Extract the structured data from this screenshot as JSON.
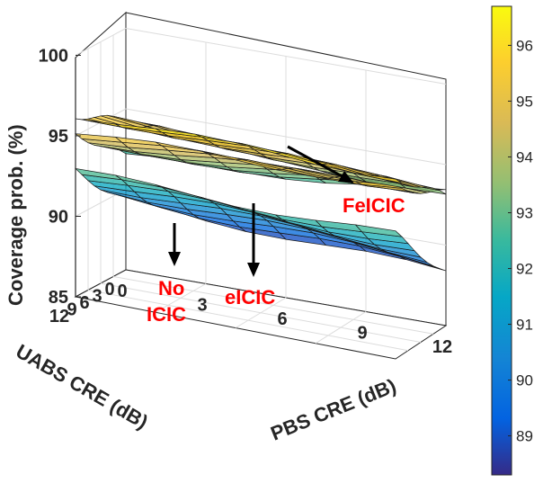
{
  "chart_data": {
    "type": "surface3d",
    "zlabel": "Coverage prob. (%)",
    "xlabel": "PBS CRE (dB)",
    "ylabel": "UABS CRE (dB)",
    "x_ticks": [
      "0",
      "3",
      "6",
      "9",
      "12"
    ],
    "y_ticks": [
      "0",
      "3",
      "6",
      "9",
      "12"
    ],
    "z_ticks": [
      "85",
      "90",
      "95",
      "100"
    ],
    "zlim": [
      85,
      100
    ],
    "colorbar": {
      "ticks": [
        "89",
        "90",
        "91",
        "92",
        "93",
        "94",
        "95",
        "96"
      ],
      "range": [
        88.3,
        96.7
      ]
    },
    "series": [
      {
        "name": "FeICIC",
        "corners": {
          "pbs0_uabs12": 96.3,
          "pbs12_uabs12": 96.3,
          "pbs0_uabs0": 94.2,
          "pbs12_uabs0": 93.0
        }
      },
      {
        "name": "eICIC",
        "corners": {
          "pbs0_uabs12": 95.2,
          "pbs12_uabs12": 95.7,
          "pbs0_uabs0": 92.0,
          "pbs12_uabs0": 93.2
        }
      },
      {
        "name": "No ICIC",
        "corners": {
          "pbs0_uabs12": 92.8,
          "pbs12_uabs12": 92.7,
          "pbs0_uabs0": 89.3,
          "pbs12_uabs0": 88.3
        }
      }
    ],
    "annotations": [
      {
        "id": "feicic",
        "text": "FeICIC"
      },
      {
        "id": "eicic",
        "text": "eICIC"
      },
      {
        "id": "no1",
        "text": "No"
      },
      {
        "id": "no2",
        "text": "ICIC"
      }
    ]
  }
}
